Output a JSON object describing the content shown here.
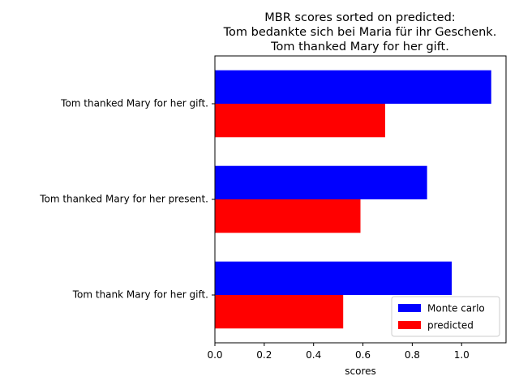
{
  "chart_data": {
    "type": "bar",
    "orientation": "horizontal",
    "title": "MBR scores sorted on predicted:\nTom bedankte sich bei Maria für ihr Geschenk.\nTom thanked Mary for her gift.",
    "title_lines": [
      "MBR scores sorted on predicted:",
      "Tom bedankte sich bei Maria für ihr Geschenk.",
      "Tom thanked Mary for her gift."
    ],
    "xlabel": "scores",
    "ylabel": "",
    "categories": [
      "Tom thanked Mary for her gift.",
      "Tom thanked Mary for her present.",
      "Tom thank Mary for her gift."
    ],
    "series": [
      {
        "name": "Monte carlo",
        "color": "#0000ff",
        "values": [
          1.12,
          0.86,
          0.96
        ]
      },
      {
        "name": "predicted",
        "color": "#ff0000",
        "values": [
          0.69,
          0.59,
          0.52
        ]
      }
    ],
    "xlim": [
      0,
      1.18
    ],
    "xticks": [
      0.0,
      0.2,
      0.4,
      0.6,
      0.8,
      1.0
    ],
    "xtick_labels": [
      "0.0",
      "0.2",
      "0.4",
      "0.6",
      "0.8",
      "1.0"
    ],
    "grid": false,
    "legend_position": "lower-right"
  }
}
